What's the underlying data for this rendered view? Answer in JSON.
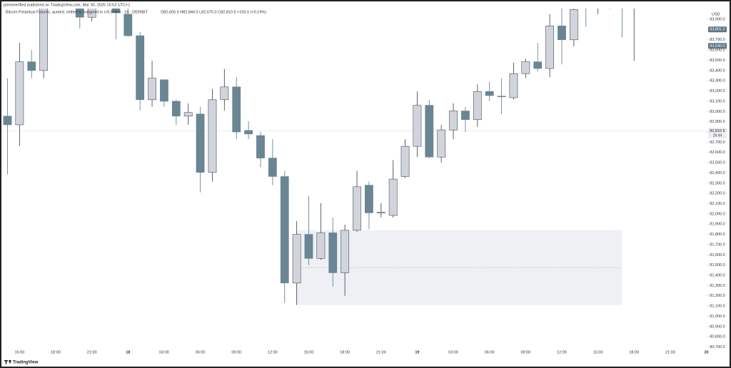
{
  "header": {
    "publisher": "primeverified published on TradingView.com, Mar 30, 2025 15:53 UTC+1",
    "symbol": "Bitcoin Perpetual Futures, quoted, settled & margined in US Dollar · 1h · DERIBIT",
    "ohlc": "O82,655.5 H82,840.0 L82,575.0 C82,810.5 +155.0 (+0.19%)"
  },
  "footer": {
    "brand": "TradingView"
  },
  "chart_data": {
    "type": "candlestick",
    "currency": "USD",
    "categories": [
      null,
      "15:00",
      null,
      null,
      "18:00",
      null,
      null,
      "21:00",
      null,
      null,
      "18",
      null,
      null,
      "03:00",
      null,
      null,
      "06:00",
      null,
      null,
      "09:00",
      null,
      null,
      "12:00",
      null,
      null,
      "15:00",
      null,
      null,
      "18:00",
      null,
      null,
      "21:00",
      null,
      null,
      "19",
      null,
      null,
      "03:00",
      null,
      null,
      "06:00",
      null,
      null,
      "09:00",
      null,
      null,
      "12:00",
      null,
      null,
      "15:00",
      null,
      null,
      "18:00",
      null,
      null,
      "21:00",
      null,
      null,
      "20"
    ],
    "open": [
      82955,
      82870,
      83485,
      83400,
      84080,
      84180,
      84055,
      83920,
      84050,
      84055,
      83950,
      83740,
      83115,
      83310,
      83100,
      82955,
      82975,
      82405,
      83115,
      83240,
      82815,
      82765,
      82545,
      82365,
      81325,
      81800,
      81565,
      81815,
      81425,
      81840,
      82280,
      82010,
      81985,
      82365,
      82660,
      83060,
      82555,
      82820,
      83005,
      82920,
      83195,
      83150,
      83135,
      83370,
      83485,
      83420,
      83835,
      83700,
      84100,
      84050,
      84100,
      84080,
      84020,
      null,
      null,
      null,
      null,
      null,
      null
    ],
    "high": [
      83325,
      83670,
      83600,
      84055,
      84250,
      84300,
      84090,
      84090,
      84200,
      84090,
      84005,
      83775,
      83495,
      83310,
      83115,
      83080,
      83045,
      83220,
      83415,
      83335,
      82905,
      82800,
      82730,
      82420,
      81930,
      82175,
      82105,
      81965,
      81895,
      82420,
      82315,
      82105,
      82525,
      82730,
      83195,
      83115,
      82870,
      83080,
      83045,
      83265,
      83290,
      83325,
      83475,
      83515,
      83670,
      83950,
      84005,
      84005,
      84200,
      84150,
      84200,
      84150,
      84100,
      null,
      null,
      null,
      null,
      null,
      null
    ],
    "low": [
      82385,
      82660,
      83325,
      83325,
      84030,
      84100,
      83810,
      83880,
      84020,
      83705,
      83725,
      83010,
      83045,
      83045,
      82870,
      82870,
      82210,
      82315,
      83010,
      82730,
      82730,
      82455,
      82280,
      81130,
      81110,
      81500,
      81550,
      81290,
      81200,
      81825,
      81850,
      81965,
      81965,
      82350,
      82555,
      82545,
      82500,
      82730,
      82800,
      82850,
      83100,
      82975,
      83115,
      83325,
      83390,
      83335,
      83460,
      83635,
      83825,
      83950,
      84000,
      83725,
      83495,
      null,
      null,
      null,
      null,
      null,
      null
    ],
    "close": [
      82870,
      83485,
      83400,
      84020,
      84180,
      84150,
      83920,
      84020,
      84120,
      83965,
      83740,
      83115,
      83325,
      83100,
      82955,
      82990,
      82405,
      83115,
      83240,
      82800,
      82780,
      82545,
      82365,
      81325,
      81800,
      81565,
      81815,
      81425,
      81840,
      82265,
      82010,
      82015,
      82340,
      82660,
      83060,
      82555,
      82820,
      83005,
      82920,
      83195,
      83155,
      83145,
      83370,
      83485,
      83420,
      83835,
      83700,
      83995,
      84050,
      84100,
      84080,
      84020,
      84050,
      null,
      null,
      null,
      null,
      null,
      null
    ],
    "up_color": "#d1d4dc",
    "down_color": "#6a8594",
    "outline_color": "#4a4f57",
    "ylim": [
      80690,
      84005
    ],
    "yticks": [
      {
        "value": 83900,
        "label": "83,900.0"
      },
      {
        "value": 83800,
        "label": "83,800.0"
      },
      {
        "value": 83700,
        "label": "83,700.0"
      },
      {
        "value": 83600,
        "label": "83,600.0"
      },
      {
        "value": 83500,
        "label": "83,500.0"
      },
      {
        "value": 83400,
        "label": "83,400.0"
      },
      {
        "value": 83300,
        "label": "83,300.0"
      },
      {
        "value": 83200,
        "label": "83,200.0"
      },
      {
        "value": 83100,
        "label": "83,100.0"
      },
      {
        "value": 83000,
        "label": "83,000.0"
      },
      {
        "value": 82900,
        "label": "82,900.0"
      },
      {
        "value": 82800,
        "label": "82,800.0"
      },
      {
        "value": 82700,
        "label": "82,700.0"
      },
      {
        "value": 82600,
        "label": "82,600.0"
      },
      {
        "value": 82500,
        "label": "82,500.0"
      },
      {
        "value": 82400,
        "label": "82,400.0"
      },
      {
        "value": 82300,
        "label": "82,300.0"
      },
      {
        "value": 82200,
        "label": "82,200.0"
      },
      {
        "value": 82100,
        "label": "82,100.0"
      },
      {
        "value": 82000,
        "label": "82,000.0"
      },
      {
        "value": 81900,
        "label": "81,900.0"
      },
      {
        "value": 81800,
        "label": "81,800.0"
      },
      {
        "value": 81700,
        "label": "81,700.0"
      },
      {
        "value": 81600,
        "label": "81,600.0"
      },
      {
        "value": 81500,
        "label": "81,500.0"
      },
      {
        "value": 81400,
        "label": "81,400.0"
      },
      {
        "value": 81300,
        "label": "81,300.0"
      },
      {
        "value": 81200,
        "label": "81,200.0"
      },
      {
        "value": 81100,
        "label": "81,100.0"
      },
      {
        "value": 81000,
        "label": "81,000.0"
      },
      {
        "value": 80900,
        "label": "80,900.0"
      },
      {
        "value": 80800,
        "label": "80,800.0"
      },
      {
        "value": 80700,
        "label": "80,700.0"
      }
    ],
    "price_labels": [
      {
        "value": 83801,
        "label": "83,801.0",
        "color": "#5b7383"
      },
      {
        "value": 83640,
        "label": "83,640.0",
        "color": "#5b7383"
      }
    ],
    "last_price": {
      "value": 82810.5,
      "label": "82,810.5",
      "countdown": "26:44"
    },
    "zone": {
      "start": 24,
      "end": 51,
      "top": 81840,
      "bottom": 81110,
      "color": "#eef0f3"
    }
  }
}
